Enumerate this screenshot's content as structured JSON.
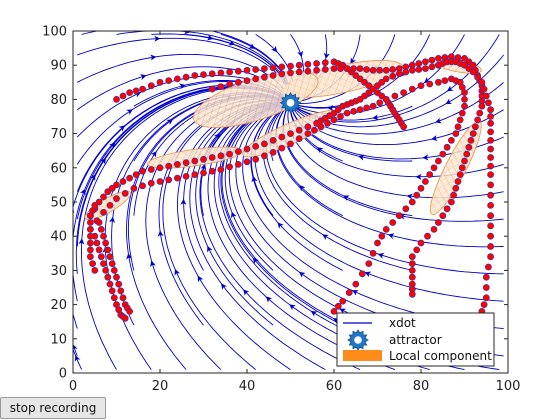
{
  "window": {
    "button": {
      "stop_label": "stop recording"
    }
  },
  "chart_data": {
    "type": "scatter",
    "xlim": [
      0,
      100
    ],
    "ylim": [
      0,
      100
    ],
    "xticks": [
      0,
      20,
      40,
      60,
      80,
      100
    ],
    "yticks": [
      0,
      10,
      20,
      30,
      40,
      50,
      60,
      70,
      80,
      90,
      100
    ],
    "grid": false,
    "legend": {
      "location": "bottom-right",
      "entries": [
        {
          "label": "xdot",
          "style": "line",
          "color": "#0000cc"
        },
        {
          "label": "attractor",
          "style": "gear-marker",
          "color": "#1f77c8"
        },
        {
          "label": "Local component",
          "style": "filled-patch",
          "color": "#ff8c1a"
        }
      ]
    },
    "colors": {
      "streamlines": "#0000cc",
      "demo_points": "#ff0000",
      "point_edge": "#3333aa",
      "local_component": "#f5a050",
      "attractor": "#1f77c8"
    },
    "attractor": {
      "x": 50,
      "y": 79
    },
    "demonstrations": [
      {
        "points": [
          [
            10,
            80
          ],
          [
            13,
            82
          ],
          [
            16,
            83
          ],
          [
            20,
            85
          ],
          [
            24,
            86
          ],
          [
            28,
            87
          ],
          [
            32,
            87.5
          ],
          [
            36,
            88
          ],
          [
            40,
            88.5
          ],
          [
            44,
            89
          ],
          [
            48,
            89.5
          ],
          [
            52,
            90
          ],
          [
            56,
            90.5
          ],
          [
            60,
            91
          ],
          [
            62,
            90
          ],
          [
            64,
            88
          ],
          [
            66,
            86
          ],
          [
            68,
            84
          ],
          [
            70,
            82
          ],
          [
            72,
            80
          ],
          [
            73,
            78
          ],
          [
            74,
            76
          ],
          [
            75,
            74
          ],
          [
            76,
            72
          ]
        ]
      },
      {
        "points": [
          [
            32,
            83
          ],
          [
            36,
            84.5
          ],
          [
            40,
            85.5
          ],
          [
            44,
            86.5
          ],
          [
            48,
            87.5
          ],
          [
            52,
            88
          ],
          [
            56,
            88.5
          ],
          [
            60,
            89
          ],
          [
            63,
            89
          ],
          [
            66,
            89
          ],
          [
            69,
            88.5
          ],
          [
            72,
            88.5
          ],
          [
            75,
            89
          ],
          [
            78,
            90
          ],
          [
            81,
            91
          ],
          [
            84,
            92
          ],
          [
            87,
            92.5
          ],
          [
            90,
            92
          ],
          [
            92,
            90
          ],
          [
            93,
            87
          ],
          [
            94,
            84
          ],
          [
            94,
            81
          ],
          [
            94,
            78
          ],
          [
            93,
            74
          ],
          [
            92,
            70
          ],
          [
            91,
            66
          ],
          [
            90,
            62
          ],
          [
            89,
            58
          ],
          [
            88,
            54
          ],
          [
            87,
            50
          ],
          [
            85,
            46
          ],
          [
            83,
            42
          ],
          [
            80,
            38
          ],
          [
            78,
            34
          ],
          [
            78,
            30
          ],
          [
            78,
            26
          ],
          [
            78,
            23
          ]
        ]
      },
      {
        "points": [
          [
            4,
            46
          ],
          [
            6,
            50
          ],
          [
            8,
            53
          ],
          [
            10,
            55
          ],
          [
            13,
            57
          ],
          [
            16,
            59
          ],
          [
            20,
            60
          ],
          [
            24,
            61
          ],
          [
            28,
            62
          ],
          [
            32,
            63
          ],
          [
            36,
            64
          ],
          [
            40,
            65.5
          ],
          [
            44,
            67
          ],
          [
            48,
            69
          ],
          [
            52,
            71
          ],
          [
            56,
            73
          ],
          [
            58,
            74.5
          ],
          [
            60,
            76
          ],
          [
            62,
            78
          ],
          [
            64,
            79
          ],
          [
            66,
            80
          ],
          [
            68,
            82
          ],
          [
            70,
            84
          ],
          [
            72,
            86
          ],
          [
            75,
            87.5
          ],
          [
            78,
            88.5
          ],
          [
            81,
            89
          ],
          [
            84,
            90
          ],
          [
            86,
            91
          ],
          [
            88,
            91
          ],
          [
            90,
            90
          ],
          [
            92,
            88
          ],
          [
            94,
            85
          ],
          [
            95,
            81
          ],
          [
            96,
            77
          ],
          [
            96,
            73
          ],
          [
            96,
            68
          ],
          [
            96,
            63
          ],
          [
            96,
            58
          ],
          [
            96,
            52
          ],
          [
            96,
            46
          ],
          [
            96,
            40
          ],
          [
            96,
            34
          ],
          [
            95,
            28
          ],
          [
            95,
            22
          ],
          [
            94,
            18
          ]
        ]
      },
      {
        "points": [
          [
            4,
            42
          ],
          [
            7,
            47
          ],
          [
            10,
            51
          ],
          [
            14,
            54
          ],
          [
            18,
            55.5
          ],
          [
            22,
            56.5
          ],
          [
            26,
            57.5
          ],
          [
            30,
            58.5
          ],
          [
            34,
            59.5
          ],
          [
            38,
            61
          ],
          [
            42,
            62.5
          ],
          [
            46,
            64.5
          ],
          [
            50,
            67
          ],
          [
            54,
            70
          ],
          [
            57,
            72
          ],
          [
            60,
            74
          ],
          [
            63,
            76
          ],
          [
            66,
            77
          ],
          [
            69,
            78
          ],
          [
            72,
            80
          ],
          [
            76,
            82
          ],
          [
            80,
            84
          ],
          [
            84,
            85
          ],
          [
            87,
            86
          ],
          [
            89,
            85
          ],
          [
            90,
            82
          ],
          [
            90,
            78
          ],
          [
            89,
            74
          ],
          [
            88,
            70
          ],
          [
            86,
            66
          ],
          [
            84,
            62
          ],
          [
            82,
            58
          ],
          [
            80,
            54
          ],
          [
            78,
            50
          ],
          [
            75,
            46
          ],
          [
            72,
            42
          ],
          [
            70,
            38
          ],
          [
            68,
            32
          ],
          [
            65,
            26
          ],
          [
            62,
            21
          ],
          [
            60,
            18
          ]
        ]
      },
      {
        "points": [
          [
            5,
            30
          ],
          [
            4,
            34
          ],
          [
            4,
            38
          ],
          [
            4,
            42
          ],
          [
            4,
            46
          ],
          [
            5,
            49
          ]
        ]
      },
      {
        "points": [
          [
            5,
            40
          ],
          [
            6,
            36
          ],
          [
            7,
            32
          ],
          [
            8,
            28
          ],
          [
            9,
            24
          ],
          [
            10,
            20
          ],
          [
            11,
            17
          ],
          [
            12,
            16
          ]
        ]
      },
      {
        "points": [
          [
            6,
            44
          ],
          [
            7,
            40
          ],
          [
            8,
            36
          ],
          [
            9,
            32
          ],
          [
            10,
            28
          ],
          [
            11,
            24
          ],
          [
            12,
            20
          ],
          [
            13,
            18
          ]
        ]
      }
    ],
    "local_components": [
      {
        "cx": 62,
        "cy": 86,
        "rx": 14,
        "ry": 4,
        "angle_deg": 12
      },
      {
        "cx": 42,
        "cy": 80,
        "rx": 15,
        "ry": 6,
        "angle_deg": 18
      },
      {
        "cx": 50,
        "cy": 70,
        "rx": 12,
        "ry": 3,
        "angle_deg": 24
      },
      {
        "cx": 8,
        "cy": 49,
        "rx": 6,
        "ry": 2,
        "angle_deg": 30
      },
      {
        "cx": 88,
        "cy": 60,
        "rx": 12,
        "ry": 3,
        "angle_deg": 63
      },
      {
        "cx": 88,
        "cy": 90,
        "rx": 6,
        "ry": 1.8,
        "angle_deg": -12
      },
      {
        "cx": 28,
        "cy": 63,
        "rx": 11,
        "ry": 2.4,
        "angle_deg": 8
      }
    ]
  }
}
